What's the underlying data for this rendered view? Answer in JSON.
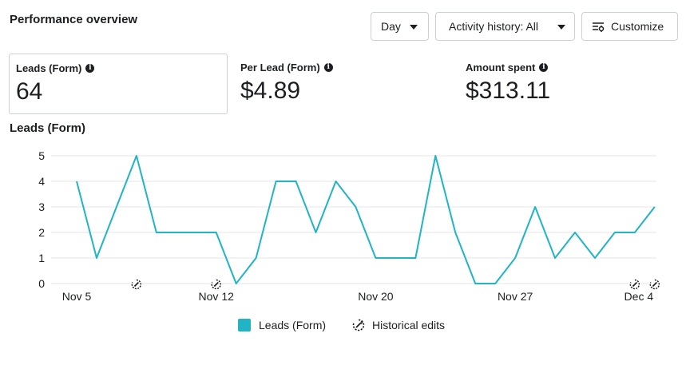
{
  "header": {
    "title": "Performance overview",
    "day_label": "Day",
    "activity_label": "Activity history: All",
    "customize_label": "Customize"
  },
  "metrics": [
    {
      "label": "Leads (Form)",
      "value": "64",
      "selected": true
    },
    {
      "label": "Per Lead (Form)",
      "value": "$4.89",
      "selected": false
    },
    {
      "label": "Amount spent",
      "value": "$313.11",
      "selected": false
    }
  ],
  "chart_title": "Leads (Form)",
  "legend": {
    "series_label": "Leads (Form)",
    "edits_label": "Historical edits"
  },
  "colors": {
    "series": "#20b4c4",
    "grid": "#e4e6eb"
  },
  "chart_data": {
    "type": "line",
    "title": "Leads (Form)",
    "x": [
      "Nov 5",
      "Nov 6",
      "Nov 7",
      "Nov 8",
      "Nov 9",
      "Nov 10",
      "Nov 11",
      "Nov 12",
      "Nov 13",
      "Nov 14",
      "Nov 15",
      "Nov 16",
      "Nov 17",
      "Nov 18",
      "Nov 19",
      "Nov 20",
      "Nov 21",
      "Nov 22",
      "Nov 23",
      "Nov 24",
      "Nov 25",
      "Nov 26",
      "Nov 27",
      "Nov 28",
      "Nov 29",
      "Nov 30",
      "Dec 1",
      "Dec 2",
      "Dec 3",
      "Dec 4"
    ],
    "series": [
      {
        "name": "Leads (Form)",
        "values": [
          4,
          1,
          3,
          5,
          2,
          2,
          2,
          2,
          0,
          1,
          4,
          4,
          2,
          4,
          3,
          1,
          1,
          1,
          5,
          2,
          0,
          0,
          1,
          3,
          1,
          2,
          1,
          2,
          2,
          3
        ]
      }
    ],
    "x_tick_labels": [
      "Nov 5",
      "Nov 12",
      "Nov 20",
      "Nov 27",
      "Dec 4"
    ],
    "x_tick_dates": [
      "Nov 5",
      "Nov 12",
      "Nov 20",
      "Nov 27",
      "Dec 4"
    ],
    "y_ticks": [
      0,
      1,
      2,
      3,
      4,
      5
    ],
    "ylim": [
      0,
      5
    ],
    "grid": true,
    "legend_position": "bottom",
    "historical_edit_dates": [
      "Nov 7",
      "Nov 11",
      "Dec 2",
      "Dec 3"
    ]
  }
}
